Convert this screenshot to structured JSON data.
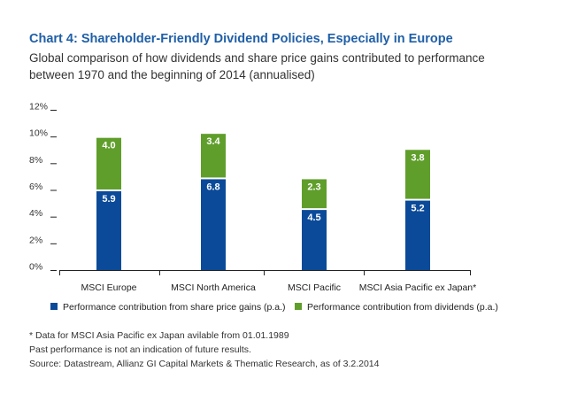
{
  "title": "Chart 4: Shareholder-Friendly Dividend Policies, Especially in Europe",
  "subtitle": "Global comparison of how dividends and share price gains contributed to performance between 1970 and the beginning of 2014 (annualised)",
  "colors": {
    "share_price": "#0b4a99",
    "dividends": "#5f9e2b",
    "title": "#1f5fa8"
  },
  "chart_data": {
    "type": "bar",
    "stacked": true,
    "categories": [
      "MSCI Europe",
      "MSCI North America",
      "MSCI Pacific",
      "MSCI Asia Pacific ex Japan*"
    ],
    "series": [
      {
        "name": "Performance contribution from share price gains (p.a.)",
        "values": [
          5.9,
          6.8,
          4.5,
          5.2
        ],
        "labels": [
          "5.9",
          "6.8",
          "4.5",
          "5.2"
        ]
      },
      {
        "name": "Performance contribution from dividends (p.a.)",
        "values": [
          4.0,
          3.4,
          2.3,
          3.8
        ],
        "labels": [
          "4.0",
          "3.4",
          "2.3",
          "3.8"
        ]
      }
    ],
    "yticks": [
      0,
      2,
      4,
      6,
      8,
      10,
      12
    ],
    "ytick_labels": [
      "0%",
      "2%",
      "4%",
      "6%",
      "8%",
      "10%",
      "12%"
    ],
    "ylim": [
      0,
      12
    ],
    "legend_position": "bottom"
  },
  "footnotes": [
    "* Data for MSCI Asia Pacific ex Japan avilable from 01.01.1989",
    "Past performance is not an indication of future results.",
    "Source: Datastream, Allianz GI Capital Markets & Thematic Research, as of 3.2.2014"
  ]
}
